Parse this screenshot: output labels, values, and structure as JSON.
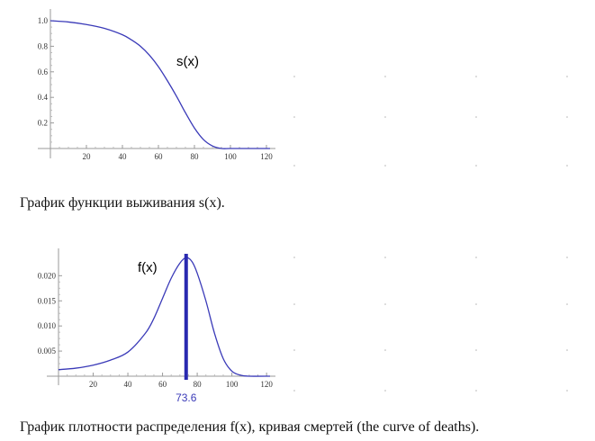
{
  "charts": [
    {
      "curve_label": "s(x)",
      "caption": "График функции выживания s(x).",
      "chart_data": {
        "type": "line",
        "title": "",
        "xlabel": "",
        "ylabel": "",
        "xlim": [
          0,
          122
        ],
        "ylim": [
          0,
          1.0
        ],
        "xticks": [
          20,
          40,
          60,
          80,
          100,
          120
        ],
        "yticks": [
          0.2,
          0.4,
          0.6,
          0.8,
          1.0
        ],
        "tick_labels_y": [
          "0.2",
          "0.4",
          "0.6",
          "0.8",
          "1.0"
        ],
        "tick_labels_x": [
          "20",
          "40",
          "60",
          "80",
          "100",
          "120"
        ],
        "curve_label": "s(x)",
        "color": "#3a3ab8",
        "series": [
          {
            "x": [
              0,
              10,
              20,
              30,
              40,
              45,
              50,
              55,
              60,
              65,
              70,
              75,
              80,
              85,
              90,
              95,
              100,
              110,
              122
            ],
            "y": [
              1.0,
              0.99,
              0.97,
              0.94,
              0.89,
              0.85,
              0.8,
              0.73,
              0.64,
              0.53,
              0.41,
              0.28,
              0.16,
              0.07,
              0.02,
              0.0,
              0.0,
              0.0,
              0.0
            ]
          }
        ],
        "grid": false
      }
    },
    {
      "curve_label": "f(x)",
      "marker_label": "73.6",
      "caption": "График плотности распределения f(x), кривая смертей (the curve of deaths).",
      "chart_data": {
        "type": "line",
        "title": "",
        "xlabel": "",
        "ylabel": "",
        "xlim": [
          0,
          122
        ],
        "ylim": [
          0,
          0.024
        ],
        "xticks": [
          20,
          40,
          60,
          80,
          100,
          120
        ],
        "yticks": [
          0.005,
          0.01,
          0.015,
          0.02
        ],
        "tick_labels_y": [
          "0.005",
          "0.010",
          "0.015",
          "0.020"
        ],
        "tick_labels_x": [
          "20",
          "40",
          "60",
          "80",
          "100",
          "120"
        ],
        "curve_label": "f(x)",
        "color": "#3a3ab8",
        "marker_x": 73.6,
        "series": [
          {
            "x": [
              0,
              10,
              20,
              30,
              40,
              50,
              55,
              60,
              65,
              70,
              73.6,
              77,
              80,
              85,
              90,
              95,
              100,
              105,
              110,
              122
            ],
            "y": [
              0.0013,
              0.0016,
              0.0022,
              0.0032,
              0.0048,
              0.0085,
              0.0115,
              0.0155,
              0.0195,
              0.0225,
              0.0236,
              0.0228,
              0.0205,
              0.015,
              0.0085,
              0.0035,
              0.001,
              0.0002,
              0.0,
              0.0
            ]
          }
        ],
        "grid": false
      }
    }
  ]
}
